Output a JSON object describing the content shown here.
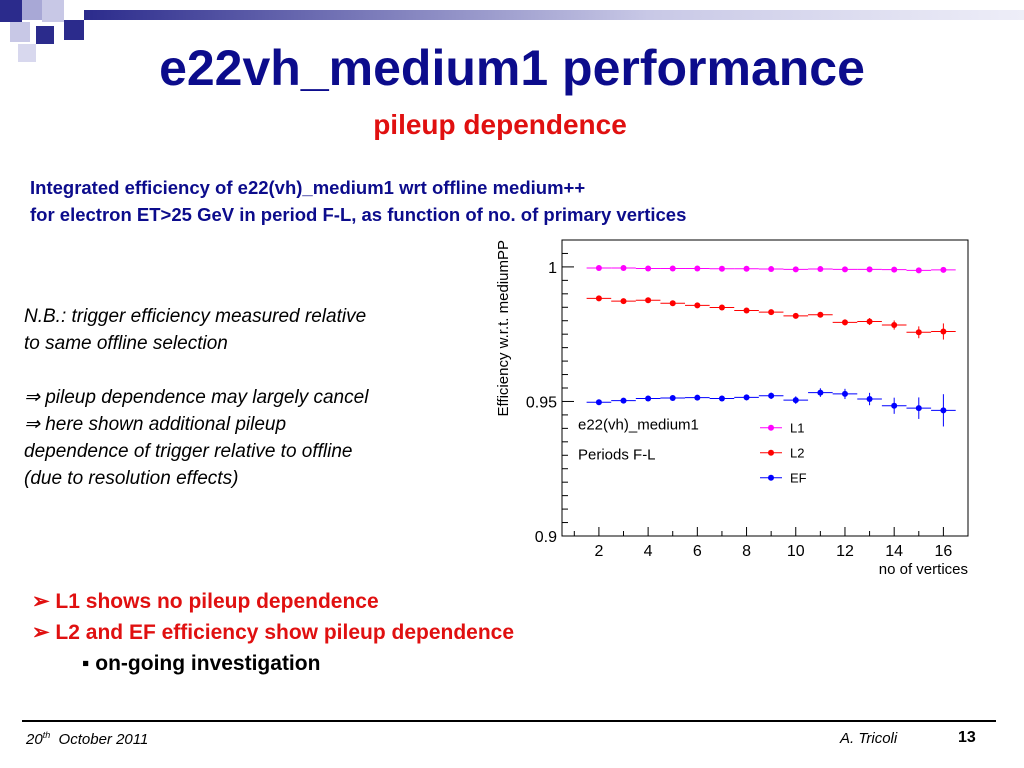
{
  "slide": {
    "title": "e22vh_medium1 performance",
    "subtitle": "pileup dependence",
    "intro_lines": [
      "Integrated efficiency of e22(vh)_medium1 wrt offline medium++",
      "for electron ET>25 GeV in period F-L, as function of no. of primary vertices"
    ],
    "note_lines": [
      "N.B.: trigger efficiency measured relative",
      "to same offline selection"
    ],
    "implication_lines": [
      "⇒ pileup dependence may largely cancel",
      "⇒ here shown additional pileup",
      "dependence of trigger relative to offline",
      "(due to resolution effects)"
    ],
    "bullets": [
      "➢ L1 shows no pileup dependence",
      "➢ L2 and EF efficiency show pileup dependence"
    ],
    "sub_bullet": "▪ on-going investigation",
    "footer": {
      "date_day": "20",
      "date_sup": "th",
      "date_rest": "October 2011",
      "author": "A. Tricoli",
      "page": "13"
    },
    "colors": {
      "title": "#0c0c8c",
      "accent_red": "#e01010",
      "deco_blue": "#2b2b8c"
    }
  },
  "chart_data": {
    "type": "scatter",
    "ylabel": "Efficiency w.r.t. mediumPP",
    "xlabel": "no of vertices",
    "xlim": [
      0.5,
      17
    ],
    "ylim": [
      0.9,
      1.01
    ],
    "x_ticks": [
      "2",
      "4",
      "6",
      "8",
      "10",
      "12",
      "14",
      "16"
    ],
    "y_ticks": [
      "0.9",
      "0.95",
      "1"
    ],
    "annotations": [
      "e22(vh)_medium1",
      "Periods F-L"
    ],
    "legend_position": "bottom-right",
    "x": [
      2,
      3,
      4,
      5,
      6,
      7,
      8,
      9,
      10,
      11,
      12,
      13,
      14,
      15,
      16
    ],
    "series": [
      {
        "name": "L1",
        "color": "#ff00ff",
        "values": [
          0.9996,
          0.9996,
          0.9994,
          0.9994,
          0.9994,
          0.9993,
          0.9993,
          0.9992,
          0.9991,
          0.9992,
          0.9991,
          0.9991,
          0.999,
          0.9987,
          0.9989
        ],
        "errors": [
          0.0002,
          0.0002,
          0.0002,
          0.0002,
          0.0002,
          0.0002,
          0.0002,
          0.0002,
          0.0002,
          0.0002,
          0.0003,
          0.0003,
          0.0004,
          0.0005,
          0.0006
        ]
      },
      {
        "name": "L2",
        "color": "#ff0000",
        "values": [
          0.9883,
          0.9873,
          0.9876,
          0.9865,
          0.9857,
          0.9849,
          0.9838,
          0.9832,
          0.9818,
          0.9822,
          0.9794,
          0.9797,
          0.9784,
          0.9757,
          0.976
        ],
        "errors": [
          0.0004,
          0.0004,
          0.0004,
          0.0004,
          0.0005,
          0.0005,
          0.0006,
          0.0006,
          0.0008,
          0.0009,
          0.0011,
          0.0013,
          0.0017,
          0.0022,
          0.003
        ]
      },
      {
        "name": "EF",
        "color": "#0000ff",
        "values": [
          0.9497,
          0.9503,
          0.9511,
          0.9513,
          0.9514,
          0.9511,
          0.9515,
          0.9521,
          0.9505,
          0.9533,
          0.9528,
          0.9509,
          0.9484,
          0.9475,
          0.9467
        ],
        "errors": [
          0.0008,
          0.0008,
          0.0008,
          0.0008,
          0.0009,
          0.001,
          0.0011,
          0.0012,
          0.0014,
          0.0016,
          0.0019,
          0.0023,
          0.003,
          0.004,
          0.006
        ]
      }
    ]
  }
}
